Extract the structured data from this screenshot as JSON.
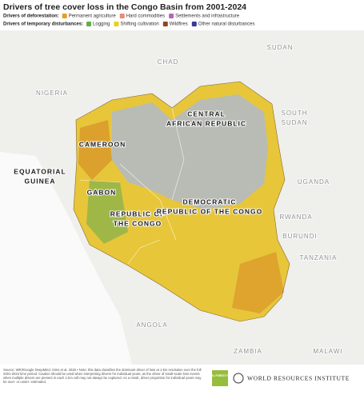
{
  "title": "Drivers of tree cover loss in the Congo Basin from 2001-2024",
  "legend": [
    {
      "heading": "Drivers of deforestation:",
      "items": [
        {
          "label": "Permanent agriculture",
          "color": "#e5a11c"
        },
        {
          "label": "Hard commodities",
          "color": "#e88a7a"
        },
        {
          "label": "Settlements and infrastructure",
          "color": "#b565b8"
        }
      ]
    },
    {
      "heading": "Drivers of temporary disturbances:",
      "items": [
        {
          "label": "Logging",
          "color": "#5fae4a"
        },
        {
          "label": "Shifting cultivation",
          "color": "#e8d21a"
        },
        {
          "label": "Wildfires",
          "color": "#8b4a1c"
        },
        {
          "label": "Other natural disturbances",
          "color": "#3a3a9a"
        }
      ]
    }
  ],
  "countries": [
    {
      "lines": [
        "CHAD"
      ],
      "focus": false
    },
    {
      "lines": [
        "SUDAN"
      ],
      "focus": false
    },
    {
      "lines": [
        "NIGERIA"
      ],
      "focus": false
    },
    {
      "lines": [
        "CENTRAL",
        "AFRICAN REPUBLIC"
      ],
      "focus": true
    },
    {
      "lines": [
        "SOUTH",
        "SUDAN"
      ],
      "focus": false
    },
    {
      "lines": [
        "CAMEROON"
      ],
      "focus": true
    },
    {
      "lines": [
        "EQUATORIAL",
        "GUINEA"
      ],
      "focus": true
    },
    {
      "lines": [
        "GABON"
      ],
      "focus": true
    },
    {
      "lines": [
        "REPUBLIC OF",
        "THE CONGO"
      ],
      "focus": true
    },
    {
      "lines": [
        "DEMOCRATIC",
        "REPUBLIC OF THE CONGO"
      ],
      "focus": true
    },
    {
      "lines": [
        "UGANDA"
      ],
      "focus": false
    },
    {
      "lines": [
        "RWANDA"
      ],
      "focus": false
    },
    {
      "lines": [
        "BURUNDI"
      ],
      "focus": false
    },
    {
      "lines": [
        "TANZANIA"
      ],
      "focus": false
    },
    {
      "lines": [
        "ANGOLA"
      ],
      "focus": false
    },
    {
      "lines": [
        "ZAMBIA"
      ],
      "focus": false
    },
    {
      "lines": [
        "MALAWI"
      ],
      "focus": false
    }
  ],
  "footer": {
    "source": "Source: WRI/Google DeepMind, Sims et al. 2025 • Note: this data classifies the dominant driver of loss at 1-km resolution over the full 2001-2024 time period. Caution should be used when interpreting drivers for individual years, as the driver of small-scale loss events when multiple drivers are present in each 1-km cell may not always be captured. As a result, driver proportion for individual years may be over- or under- estimated.",
    "logo_gfw": "GLOBAL FOREST WATCH",
    "logo_wri": "WORLD RESOURCES INSTITUTE"
  }
}
